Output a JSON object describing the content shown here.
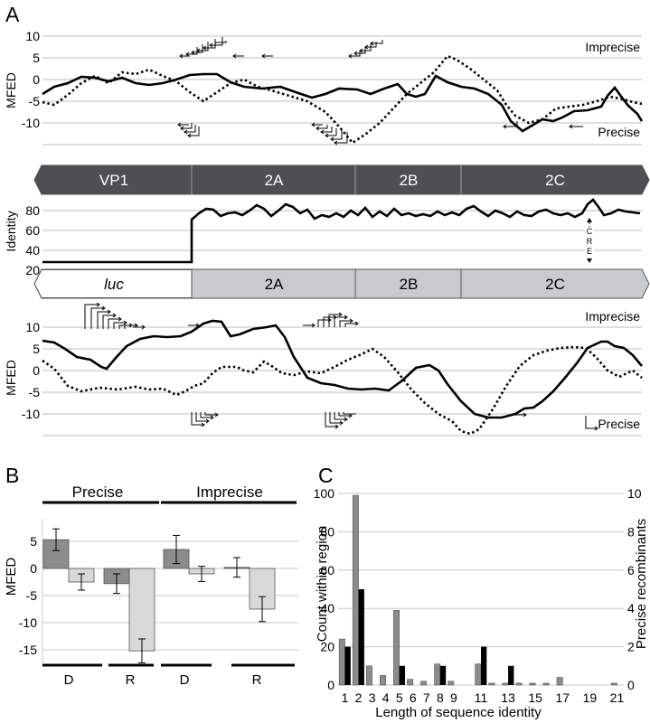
{
  "panel_labels": {
    "a": "A",
    "b": "B",
    "c": "C"
  },
  "panelA": {
    "top_track": {
      "ylabel": "MFED",
      "imprecise_label": "Imprecise",
      "precise_label": "Precise",
      "ticks": [
        "10",
        "5",
        "0",
        "-5",
        "-10"
      ]
    },
    "genome_bar_top": {
      "segments": [
        "VP1",
        "2A",
        "2B",
        "2C"
      ],
      "color": "#4d4f55"
    },
    "identity_track": {
      "ylabel": "Identity",
      "ticks": [
        "80",
        "60",
        "40",
        "20"
      ],
      "cre_letters": [
        "C",
        "R",
        "E"
      ]
    },
    "genome_bar_bottom": {
      "segments": [
        "luc",
        "2A",
        "2B",
        "2C"
      ],
      "color": "#c8cbd0"
    },
    "bottom_track": {
      "ylabel": "MFED",
      "imprecise_label": "Imprecise",
      "precise_label": "Precise",
      "ticks": [
        "10",
        "5",
        "0",
        "-5",
        "-10"
      ]
    }
  },
  "chart_data": [
    {
      "panel": "B",
      "type": "bar",
      "ylabel": "MFED",
      "ylim": [
        -17.5,
        7.5
      ],
      "yticks": [
        "5",
        "0",
        "-5",
        "-10",
        "-15"
      ],
      "group_labels": [
        "Precise",
        "Imprecise"
      ],
      "categories": [
        "D",
        "R",
        "D",
        "R"
      ],
      "series": [
        {
          "color": "#8c8c8c",
          "values": [
            5.3,
            -2.8,
            3.5,
            0.2
          ]
        },
        {
          "color": "#d9d9d9",
          "values": [
            -2.5,
            -15.2,
            -1.0,
            -7.5
          ]
        }
      ],
      "errors": [
        [
          2.0,
          1.8,
          2.6,
          1.8
        ],
        [
          1.5,
          2.2,
          1.4,
          2.3
        ]
      ]
    },
    {
      "panel": "C",
      "type": "bar",
      "xlabel": "Length of sequence identity",
      "ylabel": "Count within region",
      "ylabel_right": "Precise recombinants",
      "ylim": [
        0,
        100
      ],
      "ylim_right": [
        0,
        10
      ],
      "yticks": [
        "0",
        "20",
        "40",
        "60",
        "80",
        "100"
      ],
      "yticks_right": [
        "0",
        "2",
        "4",
        "6",
        "8",
        "10"
      ],
      "xticks": [
        "1",
        "2",
        "3",
        "4",
        "5",
        "6",
        "7",
        "8",
        "9",
        "11",
        "13",
        "15",
        "17",
        "19",
        "21"
      ],
      "x": [
        1,
        2,
        3,
        4,
        5,
        6,
        7,
        8,
        9,
        10,
        11,
        12,
        13,
        14,
        15,
        16,
        17,
        18,
        19,
        20,
        21
      ],
      "series": [
        {
          "axis": "left",
          "color": "#8c8c8c",
          "values": [
            24,
            99,
            10,
            5,
            39,
            3,
            2,
            11,
            2,
            0,
            11,
            1,
            1,
            1,
            1,
            1,
            4,
            0,
            0,
            0,
            1
          ]
        },
        {
          "axis": "right",
          "color": "#000000",
          "values": [
            2,
            5,
            0,
            0,
            1,
            0,
            0,
            1,
            0,
            0,
            2,
            0,
            1,
            0,
            0,
            0,
            0,
            0,
            0,
            0,
            0
          ]
        }
      ]
    }
  ]
}
